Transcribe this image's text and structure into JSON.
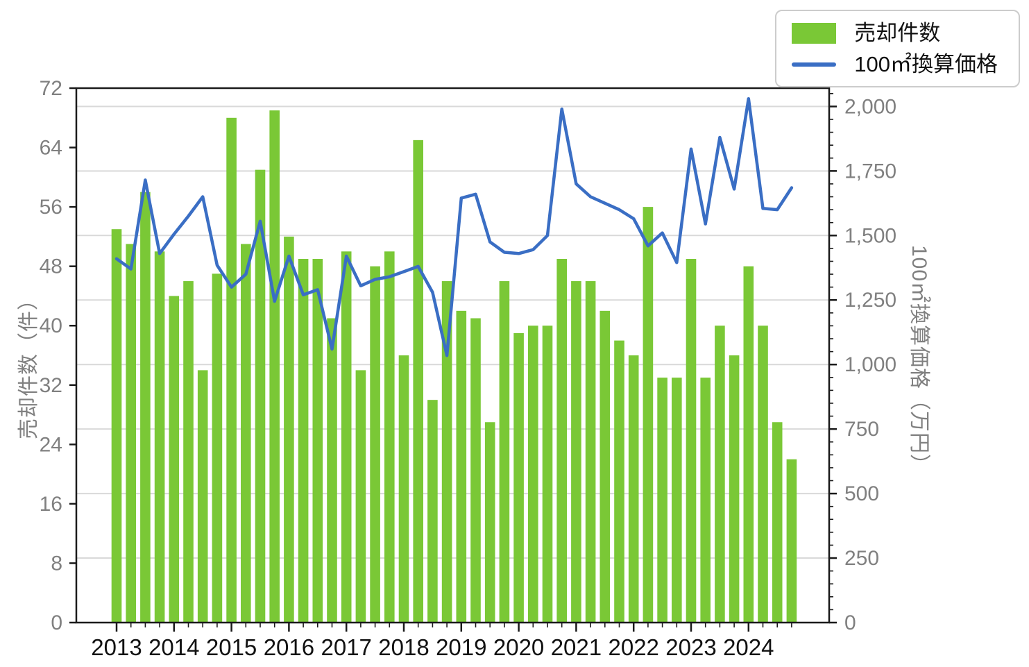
{
  "chart_data": {
    "type": "bar+line",
    "title": "",
    "x_unit": "quarter",
    "years": [
      "2013",
      "2014",
      "2015",
      "2016",
      "2017",
      "2018",
      "2019",
      "2020",
      "2021",
      "2022",
      "2023",
      "2024"
    ],
    "quarters_per_year": 4,
    "series": [
      {
        "name": "売却件数",
        "type": "bar",
        "axis": "left",
        "color": "#7ac836",
        "values": [
          53,
          51,
          58,
          50,
          44,
          46,
          34,
          47,
          68,
          51,
          61,
          69,
          52,
          49,
          49,
          41,
          50,
          34,
          48,
          50,
          36,
          65,
          30,
          46,
          42,
          41,
          27,
          46,
          39,
          40,
          40,
          49,
          46,
          46,
          42,
          38,
          36,
          56,
          33,
          33,
          49,
          33,
          40,
          36,
          48,
          40,
          27,
          22
        ]
      },
      {
        "name": "100㎡換算価格",
        "type": "line",
        "axis": "right",
        "color": "#3a6ec4",
        "values": [
          1410,
          1370,
          1715,
          1430,
          1505,
          1575,
          1650,
          1385,
          1300,
          1350,
          1555,
          1245,
          1420,
          1270,
          1290,
          1060,
          1420,
          1305,
          1330,
          1340,
          1360,
          1380,
          1280,
          1035,
          1645,
          1660,
          1475,
          1435,
          1430,
          1445,
          1500,
          1990,
          1700,
          1650,
          1625,
          1600,
          1565,
          1460,
          1510,
          1395,
          1835,
          1545,
          1880,
          1680,
          2030,
          1605,
          1600,
          1685
        ]
      }
    ],
    "left_axis": {
      "title": "売却件数（件）",
      "min": 0,
      "max": 72,
      "tick_values": [
        0,
        8,
        16,
        24,
        32,
        40,
        48,
        56,
        64,
        72
      ],
      "tick_labels": [
        "0",
        "8",
        "16",
        "24",
        "32",
        "40",
        "48",
        "56",
        "64",
        "72"
      ]
    },
    "right_axis": {
      "title": "100㎡換算価格（万円）",
      "min": 0,
      "max": 2071,
      "major_tick_values": [
        0,
        250,
        500,
        750,
        1000,
        1250,
        1500,
        1750,
        2000
      ],
      "major_tick_labels": [
        "0",
        "250",
        "500",
        "750",
        "1,000",
        "1,250",
        "1,500",
        "1,750",
        "2,000"
      ],
      "minor_tick_step": 50
    },
    "grid": {
      "show": true,
      "color": "#d9d9d9",
      "at_right_axis_values": [
        250,
        500,
        750,
        1000,
        1250,
        1500,
        1750,
        2000
      ]
    },
    "legend": {
      "position": "top-right",
      "items": [
        "売却件数",
        "100㎡換算価格"
      ]
    },
    "colors": {
      "bar": "#7ac836",
      "line": "#3a6ec4",
      "axis": "#1a1a1a",
      "tick_label": "#808080",
      "year_label": "#111111",
      "grid": "#d9d9d9"
    }
  }
}
